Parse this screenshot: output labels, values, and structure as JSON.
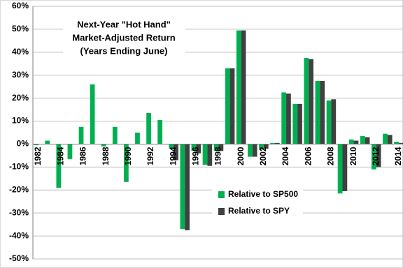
{
  "chart_data": {
    "type": "bar",
    "title": [
      "Next-Year \"Hot Hand\"",
      "Market-Adjusted Return",
      "(Years Ending June)"
    ],
    "categories": [
      "1982",
      null,
      "1984",
      null,
      "1986",
      null,
      "1988",
      null,
      "1990",
      null,
      "1992",
      null,
      "1994",
      null,
      "1996",
      null,
      "1998",
      null,
      "2000",
      null,
      "2002",
      null,
      "2004",
      null,
      "2006",
      null,
      "2008",
      null,
      "2010",
      null,
      "2012",
      null,
      "2014"
    ],
    "series": [
      {
        "name": "Relative to SP500",
        "color": "#00b050",
        "values": [
          -0.5,
          1.5,
          -19,
          -6.5,
          7.5,
          26,
          -1,
          7.5,
          -16.5,
          5,
          13.5,
          10.5,
          -2,
          -37,
          -3,
          -9,
          -3,
          33,
          49.5,
          -5.5,
          -2.5,
          0.5,
          22.5,
          17.5,
          37.5,
          27.5,
          19,
          -21.5,
          2,
          3.5,
          -11,
          4.5,
          1
        ]
      },
      {
        "name": "Relative to SPY",
        "color": "#404040",
        "values": [
          null,
          null,
          null,
          null,
          null,
          null,
          null,
          null,
          null,
          null,
          null,
          null,
          -7,
          -37.5,
          -4,
          -9.5,
          -3,
          33,
          49.5,
          -5.5,
          -2,
          0.5,
          22,
          17.5,
          37,
          27.5,
          19.5,
          -20.5,
          1.5,
          3,
          -10,
          4,
          0.5
        ]
      }
    ],
    "ylim": [
      -50,
      60
    ],
    "yticks": [
      {
        "value": -50,
        "label": "-50%"
      },
      {
        "value": -40,
        "label": "-40%"
      },
      {
        "value": -30,
        "label": "-30%"
      },
      {
        "value": -20,
        "label": "-20%"
      },
      {
        "value": -10,
        "label": "-10%"
      },
      {
        "value": 0,
        "label": "0%"
      },
      {
        "value": 10,
        "label": "10%"
      },
      {
        "value": 20,
        "label": "20%"
      },
      {
        "value": 30,
        "label": "30%"
      },
      {
        "value": 40,
        "label": "40%"
      },
      {
        "value": 50,
        "label": "50%"
      },
      {
        "value": 60,
        "label": "60%"
      }
    ],
    "grid": true
  }
}
